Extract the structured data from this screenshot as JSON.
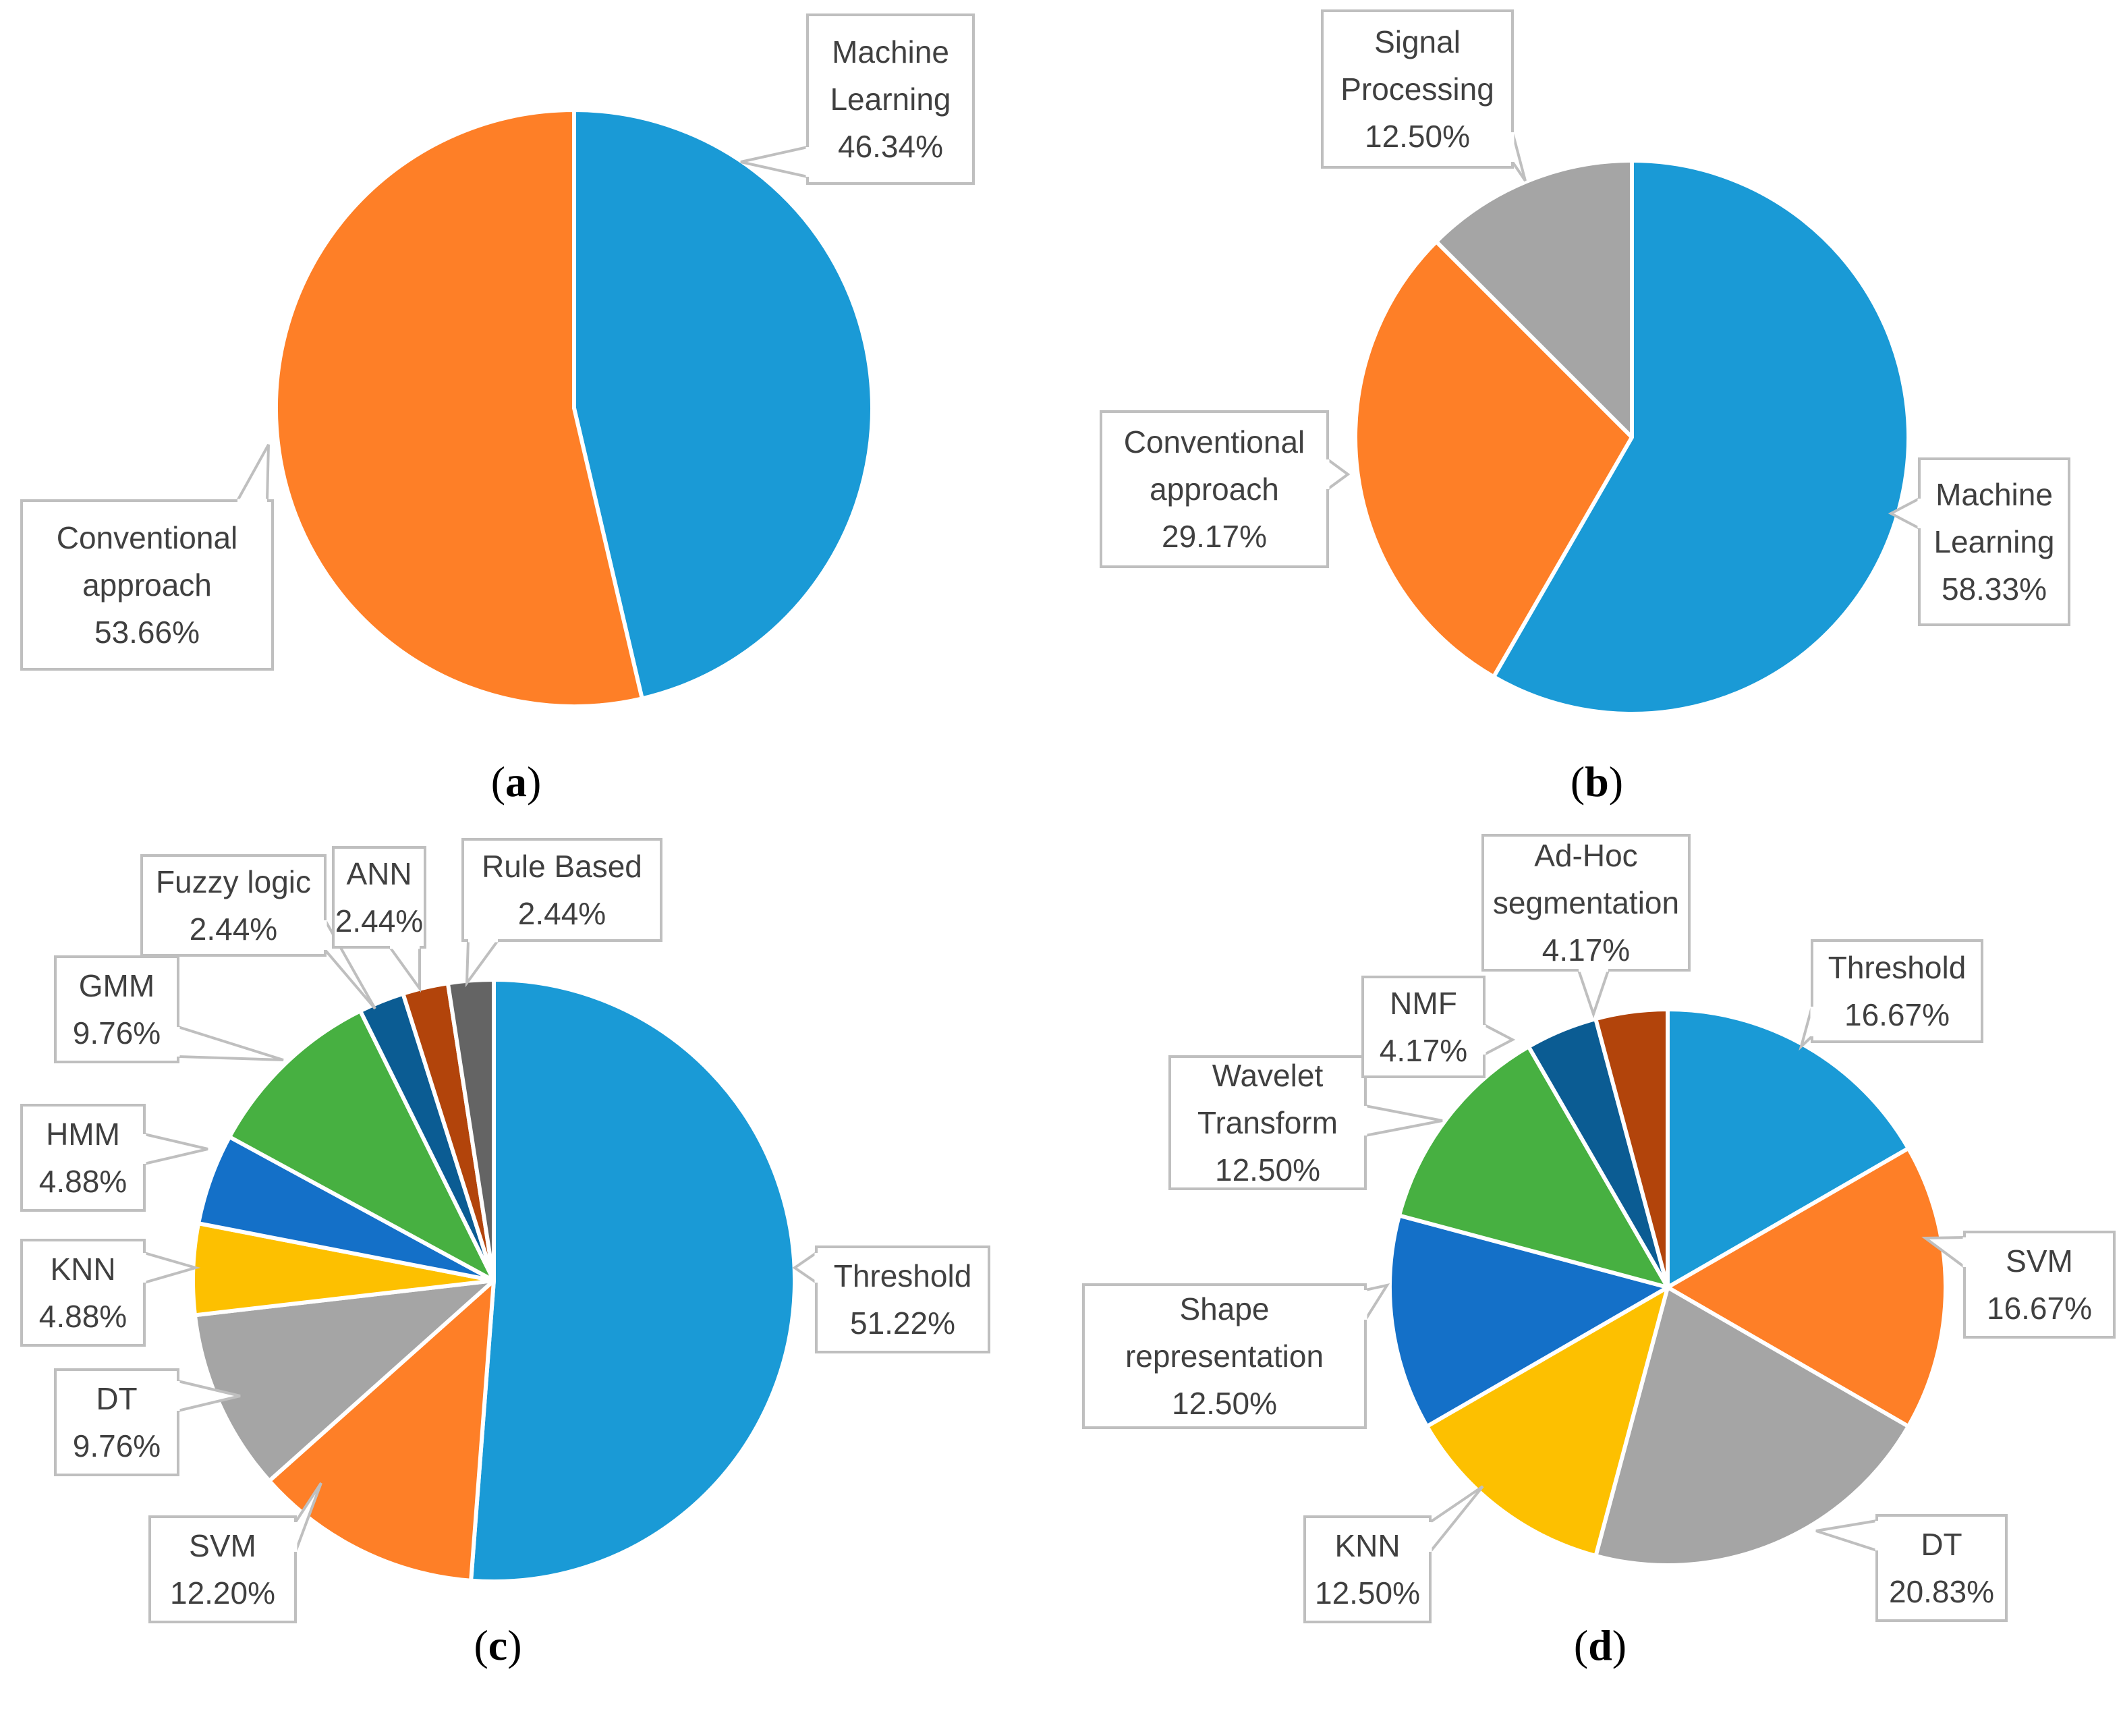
{
  "colors": {
    "blue": "#1a9ad6",
    "orange": "#fe7f27",
    "gray": "#a5a5a5",
    "yellow": "#fdc000",
    "mid_blue": "#1470c8",
    "green": "#47b041",
    "dark_blue": "#0b5c93",
    "rust": "#b2440b",
    "dark_gray": "#646464",
    "label_border": "#bfbfbf",
    "label_text": "#404040"
  },
  "chart_data": [
    {
      "id": "a",
      "type": "pie",
      "caption": {
        "open": "(",
        "letter": "a",
        "close": ")"
      },
      "slices": [
        {
          "name": [
            "Machine",
            "Learning"
          ],
          "value": 46.34,
          "value_label": "46.34%",
          "color": "#1a9ad6"
        },
        {
          "name": [
            "Conventional",
            "approach"
          ],
          "value": 53.66,
          "value_label": "53.66%",
          "color": "#fe7f27"
        }
      ]
    },
    {
      "id": "b",
      "type": "pie",
      "caption": {
        "open": "(",
        "letter": "b",
        "close": ")"
      },
      "slices": [
        {
          "name": [
            "Machine",
            "Learning"
          ],
          "value": 58.33,
          "value_label": "58.33%",
          "color": "#1a9ad6"
        },
        {
          "name": [
            "Conventional",
            "approach"
          ],
          "value": 29.17,
          "value_label": "29.17%",
          "color": "#fe7f27"
        },
        {
          "name": [
            "Signal",
            "Processing"
          ],
          "value": 12.5,
          "value_label": "12.50%",
          "color": "#a5a5a5"
        }
      ]
    },
    {
      "id": "c",
      "type": "pie",
      "caption": {
        "open": "(",
        "letter": "c",
        "close": ")"
      },
      "slices": [
        {
          "name": [
            "Threshold"
          ],
          "value": 51.22,
          "value_label": "51.22%",
          "color": "#1a9ad6"
        },
        {
          "name": [
            "SVM"
          ],
          "value": 12.2,
          "value_label": "12.20%",
          "color": "#fe7f27"
        },
        {
          "name": [
            "DT"
          ],
          "value": 9.76,
          "value_label": "9.76%",
          "color": "#a5a5a5"
        },
        {
          "name": [
            "KNN"
          ],
          "value": 4.88,
          "value_label": "4.88%",
          "color": "#fdc000"
        },
        {
          "name": [
            "HMM"
          ],
          "value": 4.88,
          "value_label": "4.88%",
          "color": "#1470c8"
        },
        {
          "name": [
            "GMM"
          ],
          "value": 9.76,
          "value_label": "9.76%",
          "color": "#47b041"
        },
        {
          "name": [
            "Fuzzy logic"
          ],
          "value": 2.44,
          "value_label": "2.44%",
          "color": "#0b5c93"
        },
        {
          "name": [
            "ANN"
          ],
          "value": 2.44,
          "value_label": "2.44%",
          "color": "#b2440b"
        },
        {
          "name": [
            "Rule Based"
          ],
          "value": 2.44,
          "value_label": "2.44%",
          "color": "#646464"
        }
      ]
    },
    {
      "id": "d",
      "type": "pie",
      "caption": {
        "open": "(",
        "letter": "d",
        "close": ")"
      },
      "slices": [
        {
          "name": [
            "Threshold"
          ],
          "value": 16.67,
          "value_label": "16.67%",
          "color": "#1a9ad6"
        },
        {
          "name": [
            "SVM"
          ],
          "value": 16.67,
          "value_label": "16.67%",
          "color": "#fe7f27"
        },
        {
          "name": [
            "DT"
          ],
          "value": 20.83,
          "value_label": "20.83%",
          "color": "#a5a5a5"
        },
        {
          "name": [
            "KNN"
          ],
          "value": 12.5,
          "value_label": "12.50%",
          "color": "#fdc000"
        },
        {
          "name": [
            "Shape",
            "representation"
          ],
          "value": 12.5,
          "value_label": "12.50%",
          "color": "#1470c8"
        },
        {
          "name": [
            "Wavelet",
            "Transform"
          ],
          "value": 12.5,
          "value_label": "12.50%",
          "color": "#47b041"
        },
        {
          "name": [
            "NMF"
          ],
          "value": 4.17,
          "value_label": "4.17%",
          "color": "#0b5c93"
        },
        {
          "name": [
            "Ad-Hoc",
            "segmentation"
          ],
          "value": 4.17,
          "value_label": "4.17%",
          "color": "#b2440b"
        }
      ]
    }
  ]
}
